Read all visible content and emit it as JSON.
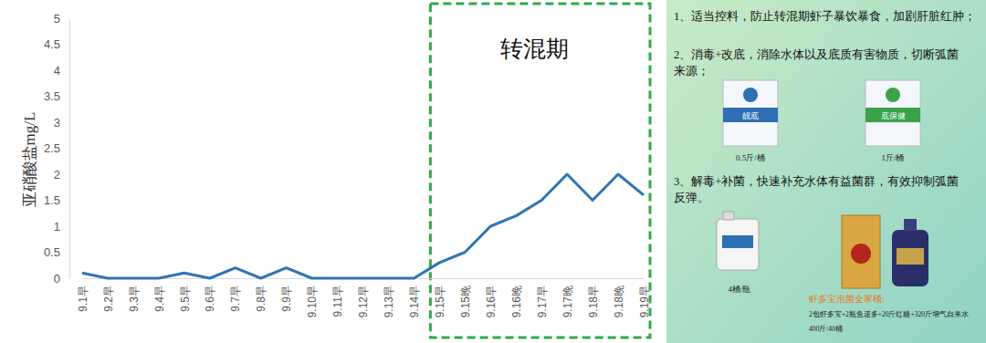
{
  "chart_data": {
    "type": "line",
    "y_label": "亚硝酸盐mg/L",
    "annotation": "转混期",
    "categories": [
      "9.1早",
      "9.2早",
      "9.3早",
      "9.4早",
      "9.5早",
      "9.6早",
      "9.7早",
      "9.8早",
      "9.9早",
      "9.10早",
      "9.11早",
      "9.12早",
      "9.13早",
      "9.14早",
      "9.15早",
      "9.15晚",
      "9.16早",
      "9.16晚",
      "9.17早",
      "9.17晚",
      "9.18早",
      "9.18晚",
      "9.19早"
    ],
    "values": [
      0.1,
      0,
      0,
      0,
      0.1,
      0,
      0.2,
      0,
      0.2,
      0,
      0,
      0,
      0,
      0,
      0.3,
      0.5,
      1.0,
      1.2,
      1.5,
      2.0,
      1.5,
      2.0,
      1.6
    ],
    "color": "#2e75b6",
    "ylim": [
      0,
      5
    ],
    "yticks": [
      0,
      0.5,
      1,
      1.5,
      2,
      2.5,
      3,
      3.5,
      4,
      4.5,
      5
    ],
    "grid": false
  },
  "side_panel": {
    "items": [
      {
        "lines": [
          "1、适当控料，防止转混期虾子暴饮暴食，加剧肝脏红肿；"
        ]
      },
      {
        "lines": [
          "2、消毒+改底，消除水体以及底质有害物质，切断弧菌",
          "来源；"
        ],
        "products": [
          {
            "name": "靓底",
            "label": "0.5斤/桶"
          },
          {
            "name": "底保健",
            "label": "1斤/桶"
          }
        ]
      },
      {
        "lines": [
          "3、解毒+补菌，快速补充水体有益菌群，有效抑制弧菌",
          "反弹。"
        ],
        "products": [
          {
            "label": "4桶/瓶"
          }
        ]
      }
    ],
    "kit_title": "虾多宝泡菌全家桶:",
    "kit_lines": [
      "2包虾多宝+2瓶鱼速多+20斤红糖+320斤增气自来水",
      "400斤/40桶"
    ]
  }
}
